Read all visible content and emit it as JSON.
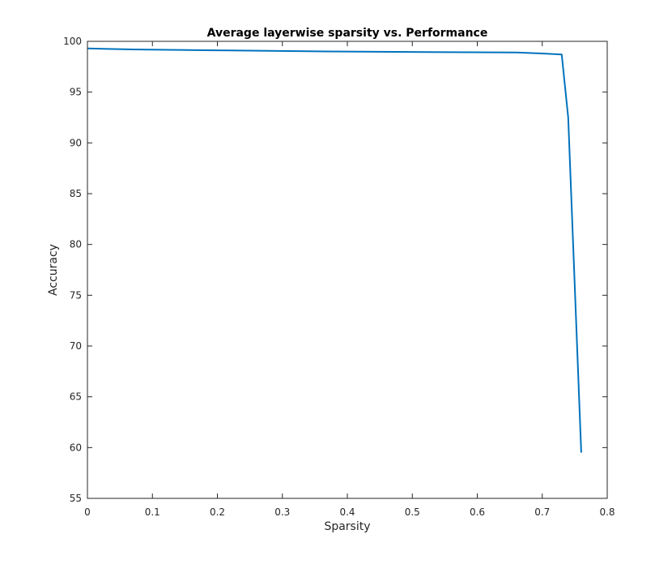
{
  "chart_data": {
    "type": "line",
    "title": "Average layerwise sparsity vs. Performance",
    "xlabel": "Sparsity",
    "ylabel": "Accuracy",
    "xlim": [
      0,
      0.8
    ],
    "ylim": [
      55,
      100
    ],
    "xticks": [
      "0",
      "0.1",
      "0.2",
      "0.3",
      "0.4",
      "0.5",
      "0.6",
      "0.7",
      "0.8"
    ],
    "yticks": [
      "55",
      "60",
      "65",
      "70",
      "75",
      "80",
      "85",
      "90",
      "95",
      "100"
    ],
    "grid": false,
    "legend": "none",
    "series": [
      {
        "color": "#0072BD",
        "x": [
          0,
          0.07,
          0.22,
          0.37,
          0.52,
          0.66,
          0.7,
          0.73,
          0.74,
          0.76
        ],
        "y": [
          99.3,
          99.2,
          99.1,
          99.0,
          98.95,
          98.9,
          98.8,
          98.7,
          92.5,
          59.5
        ]
      }
    ]
  }
}
